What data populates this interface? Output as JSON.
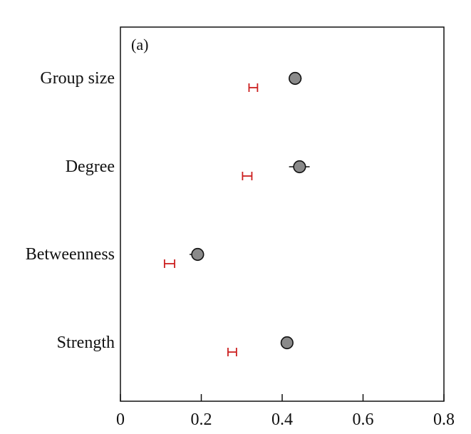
{
  "panel": {
    "label": "(a)"
  },
  "chart_data": {
    "type": "scatter",
    "orientation": "horizontal",
    "categories": [
      "Group size",
      "Degree",
      "Betweenness",
      "Strength"
    ],
    "x_ticks": [
      "0",
      "0.2",
      "0.4",
      "0.6",
      "0.8"
    ],
    "xlim": [
      0,
      0.8
    ],
    "xlabel": "",
    "ylabel": "",
    "grid": false,
    "legend": "none",
    "series": [
      {
        "values": [
          0.432,
          0.443,
          0.191,
          0.412
        ],
        "errors": [
          [
            0.418,
            0.448
          ],
          [
            0.417,
            0.468
          ],
          [
            0.171,
            0.206
          ],
          [
            0.399,
            0.425
          ]
        ],
        "marker_fill": "#8a8a8a",
        "marker_stroke": "#111111",
        "error_color": "#111111"
      },
      {
        "values": [
          0.328,
          0.313,
          0.121,
          0.276
        ],
        "errors": [
          [
            0.318,
            0.339
          ],
          [
            0.302,
            0.325
          ],
          [
            0.109,
            0.134
          ],
          [
            0.266,
            0.287
          ]
        ],
        "error_color": "#cc1f1f"
      }
    ]
  }
}
